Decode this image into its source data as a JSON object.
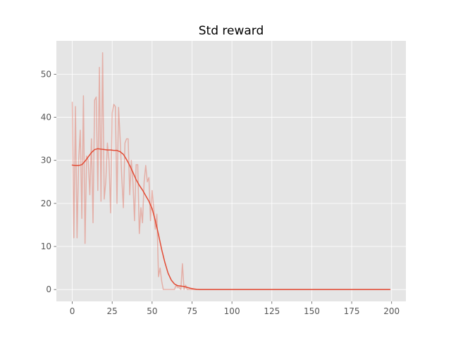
{
  "chart_data": {
    "type": "line",
    "title": "Std reward",
    "xlabel": "",
    "ylabel": "",
    "xlim": [
      -9.95,
      208.95
    ],
    "ylim": [
      -2.75,
      57.75
    ],
    "xticks": [
      0,
      25,
      50,
      75,
      100,
      125,
      150,
      175,
      200
    ],
    "yticks": [
      0,
      10,
      20,
      30,
      40,
      50
    ],
    "grid": true,
    "legend": "none",
    "colors": {
      "background": "#e5e5e5",
      "grid": "#ffffff",
      "raw_series": "#e24a33",
      "smoothed_series": "#e24a33"
    },
    "series": [
      {
        "style": "raw",
        "opacity": 0.35,
        "x": [
          0,
          1,
          2,
          3,
          4,
          5,
          6,
          7,
          8,
          9,
          10,
          11,
          12,
          13,
          14,
          15,
          16,
          17,
          18,
          19,
          20,
          21,
          22,
          23,
          24,
          25,
          26,
          27,
          28,
          29,
          30,
          31,
          32,
          33,
          34,
          35,
          36,
          37,
          38,
          39,
          40,
          41,
          42,
          43,
          44,
          45,
          46,
          47,
          48,
          49,
          50,
          51,
          52,
          53,
          54,
          55,
          56,
          57,
          58,
          59,
          60,
          61,
          62,
          63,
          64,
          65,
          66,
          67,
          68,
          69,
          70,
          71,
          72,
          73,
          74,
          75,
          76,
          77,
          78,
          79,
          80,
          90,
          100,
          110,
          120,
          130,
          140,
          150,
          160,
          170,
          180,
          190,
          199
        ],
        "y": [
          43.5,
          12,
          42.5,
          12,
          30,
          37,
          16.5,
          45,
          10.7,
          31,
          30,
          22,
          35,
          15.5,
          44,
          44.7,
          23,
          51.6,
          20.5,
          55,
          21,
          25,
          34,
          30,
          17.8,
          41,
          43,
          42.5,
          20,
          42.3,
          35,
          26,
          19,
          34,
          35,
          35,
          22,
          30,
          25,
          16,
          29,
          29,
          13,
          19,
          15.5,
          25,
          28.8,
          25,
          26,
          16,
          23,
          19,
          14,
          17.5,
          3,
          5,
          2,
          0,
          0,
          0,
          0,
          0,
          0,
          0,
          0,
          1,
          0.5,
          0.5,
          0,
          6,
          0,
          1,
          0,
          0,
          0,
          0,
          0,
          0,
          0,
          0,
          0,
          0,
          0,
          0,
          0,
          0,
          0,
          0,
          0,
          0,
          0,
          0,
          0
        ]
      },
      {
        "style": "smoothed",
        "opacity": 1,
        "x": [
          0,
          2,
          4,
          6,
          8,
          10,
          12,
          14,
          16,
          18,
          20,
          22,
          24,
          26,
          28,
          30,
          32,
          34,
          36,
          38,
          40,
          42,
          44,
          46,
          48,
          50,
          52,
          54,
          56,
          58,
          60,
          62,
          64,
          66,
          68,
          70,
          72,
          74,
          76,
          78,
          80,
          85,
          90,
          100,
          110,
          120,
          130,
          140,
          150,
          160,
          170,
          180,
          190,
          199
        ],
        "y": [
          28.9,
          28.8,
          28.8,
          29,
          29.8,
          30.8,
          31.8,
          32.5,
          32.7,
          32.6,
          32.5,
          32.4,
          32.4,
          32.3,
          32.3,
          32,
          31.4,
          30.2,
          28.8,
          27.2,
          25.5,
          24.2,
          23.1,
          21.8,
          20.5,
          18.8,
          16,
          12.8,
          9.3,
          6.3,
          3.8,
          2.2,
          1.3,
          0.9,
          0.8,
          0.7,
          0.5,
          0.3,
          0.15,
          0.05,
          0,
          0,
          0,
          0,
          0,
          0,
          0,
          0,
          0,
          0,
          0,
          0,
          0,
          0
        ]
      }
    ]
  }
}
